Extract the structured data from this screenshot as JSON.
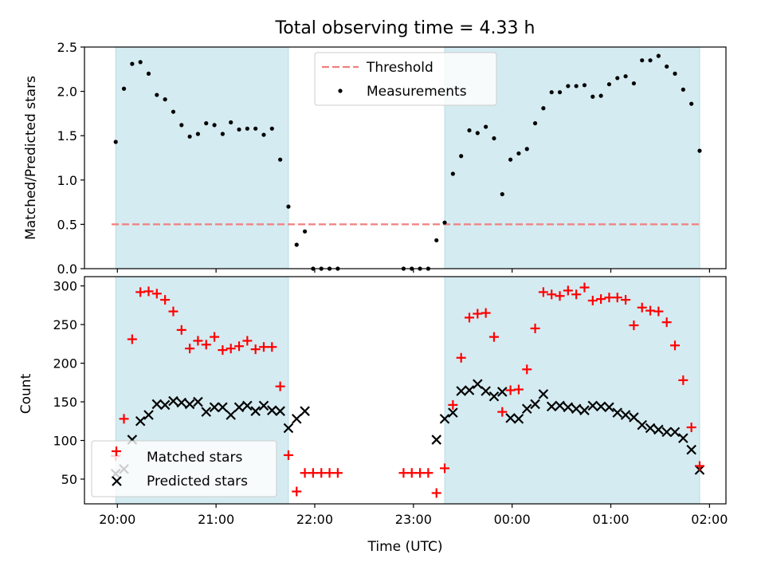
{
  "chart_data": [
    {
      "type": "scatter",
      "title": "Total observing time = 4.33 h",
      "ylabel": "Matched/Predicted stars",
      "ylim": [
        0,
        2.5
      ],
      "yticks": [
        0,
        0.5,
        1.0,
        1.5,
        2.0,
        2.5
      ],
      "ytick_labels": [
        "0.0",
        "0.5",
        "1.0",
        "1.5",
        "2.0",
        "2.5"
      ],
      "legend_placement": "upper-center",
      "threshold": {
        "name": "Threshold",
        "y": 0.5,
        "color": "#f08080",
        "style": "dashed"
      },
      "series": [
        {
          "name": "Measurements",
          "color": "#000000",
          "marker": "dot",
          "x": [
            "19:49",
            "19:54",
            "19:59",
            "20:04",
            "20:09",
            "20:14",
            "20:19",
            "20:24",
            "20:29",
            "20:34",
            "20:39",
            "20:44",
            "20:49",
            "20:54",
            "20:59",
            "21:04",
            "21:09",
            "21:14",
            "21:19",
            "21:24",
            "21:29",
            "21:34",
            "21:39",
            "21:44",
            "21:49",
            "21:54",
            "21:59",
            "22:04",
            "22:44",
            "22:49",
            "22:54",
            "22:59",
            "23:04",
            "23:09",
            "23:14",
            "23:19",
            "23:24",
            "23:29",
            "23:34",
            "23:39",
            "23:44",
            "23:49",
            "23:54",
            "23:59",
            "00:04",
            "00:09",
            "00:14",
            "00:19",
            "00:24",
            "00:29",
            "00:34",
            "00:39",
            "00:44",
            "00:49",
            "00:54",
            "00:59",
            "01:04",
            "01:09",
            "01:14",
            "01:19",
            "01:24",
            "01:29",
            "01:34",
            "01:39",
            "01:44"
          ],
          "values": [
            1.43,
            2.03,
            2.31,
            2.33,
            2.2,
            1.96,
            1.91,
            1.77,
            1.62,
            1.49,
            1.52,
            1.64,
            1.62,
            1.52,
            1.65,
            1.57,
            1.58,
            1.58,
            1.51,
            1.58,
            1.23,
            0.7,
            0.27,
            0.42,
            0.0,
            0.0,
            0.0,
            0.0,
            0.0,
            0.0,
            0.0,
            0.0,
            0.32,
            0.52,
            1.07,
            1.27,
            1.56,
            1.53,
            1.6,
            1.47,
            0.84,
            1.23,
            1.3,
            1.35,
            1.64,
            1.81,
            1.99,
            1.99,
            2.06,
            2.06,
            2.07,
            1.94,
            1.95,
            2.08,
            2.15,
            2.17,
            2.09,
            2.35,
            2.35,
            2.4,
            2.28,
            2.2,
            2.02,
            1.86,
            1.33
          ]
        }
      ],
      "shaded_intervals": [
        [
          "19:49",
          "21:34"
        ],
        [
          "23:09",
          "01:44"
        ]
      ],
      "shade_color": "#d4ebf1"
    },
    {
      "type": "scatter",
      "xlabel": "Time (UTC)",
      "ylabel": "Count",
      "ylim": [
        18,
        312
      ],
      "yticks": [
        50,
        100,
        150,
        200,
        250,
        300
      ],
      "ytick_labels": [
        "50",
        "100",
        "150",
        "200",
        "250",
        "300"
      ],
      "x_range": [
        "19:30",
        "02:00"
      ],
      "xticks": [
        "19:50",
        "20:50",
        "21:50",
        "22:50",
        "23:50",
        "00:50",
        "01:50"
      ],
      "xtick_labels": [
        "20:00",
        "21:00",
        "22:00",
        "23:00",
        "00:00",
        "01:00",
        "02:00"
      ],
      "legend_placement": "lower-left",
      "series": [
        {
          "name": "Matched stars",
          "color": "#ff0000",
          "marker": "plus",
          "x": [
            "19:49",
            "19:54",
            "19:59",
            "20:04",
            "20:09",
            "20:14",
            "20:19",
            "20:24",
            "20:29",
            "20:34",
            "20:39",
            "20:44",
            "20:49",
            "20:54",
            "20:59",
            "21:04",
            "21:09",
            "21:14",
            "21:19",
            "21:24",
            "21:29",
            "21:34",
            "21:39",
            "21:44",
            "21:49",
            "21:54",
            "21:59",
            "22:04",
            "22:44",
            "22:49",
            "22:54",
            "22:59",
            "23:04",
            "23:09",
            "23:14",
            "23:19",
            "23:24",
            "23:29",
            "23:34",
            "23:39",
            "23:44",
            "23:49",
            "23:54",
            "23:59",
            "00:04",
            "00:09",
            "00:14",
            "00:19",
            "00:24",
            "00:29",
            "00:34",
            "00:39",
            "00:44",
            "00:49",
            "00:54",
            "00:59",
            "01:04",
            "01:09",
            "01:14",
            "01:19",
            "01:24",
            "01:29",
            "01:34",
            "01:39",
            "01:44"
          ],
          "values": [
            80,
            128,
            231,
            292,
            293,
            290,
            282,
            267,
            243,
            219,
            229,
            224,
            234,
            217,
            219,
            222,
            229,
            218,
            221,
            221,
            170,
            81,
            34,
            58,
            58,
            58,
            58,
            58,
            58,
            58,
            58,
            58,
            32,
            64,
            146,
            207,
            259,
            264,
            265,
            234,
            137,
            165,
            166,
            192,
            245,
            292,
            289,
            287,
            294,
            289,
            298,
            281,
            283,
            285,
            285,
            282,
            249,
            272,
            268,
            267,
            253,
            223,
            178,
            117,
            67
          ]
        },
        {
          "name": "Predicted stars",
          "color": "#000000",
          "marker": "cross",
          "x": [
            "19:49",
            "19:54",
            "19:59",
            "20:04",
            "20:09",
            "20:14",
            "20:19",
            "20:24",
            "20:29",
            "20:34",
            "20:39",
            "20:44",
            "20:49",
            "20:54",
            "20:59",
            "21:04",
            "21:09",
            "21:14",
            "21:19",
            "21:24",
            "21:29",
            "21:34",
            "21:39",
            "21:44",
            "23:04",
            "23:09",
            "23:14",
            "23:19",
            "23:24",
            "23:29",
            "23:34",
            "23:39",
            "23:44",
            "23:49",
            "23:54",
            "23:59",
            "00:04",
            "00:09",
            "00:14",
            "00:19",
            "00:24",
            "00:29",
            "00:34",
            "00:39",
            "00:44",
            "00:49",
            "00:54",
            "00:59",
            "01:04",
            "01:09",
            "01:14",
            "01:19",
            "01:24",
            "01:29",
            "01:34",
            "01:39",
            "01:44"
          ],
          "values": [
            57,
            63,
            101,
            125,
            133,
            147,
            146,
            151,
            149,
            147,
            150,
            137,
            143,
            143,
            133,
            143,
            145,
            138,
            145,
            139,
            138,
            116,
            128,
            138,
            101,
            128,
            136,
            164,
            165,
            173,
            164,
            157,
            163,
            129,
            128,
            141,
            147,
            160,
            144,
            145,
            143,
            141,
            139,
            145,
            144,
            143,
            136,
            133,
            130,
            120,
            116,
            114,
            111,
            111,
            103,
            88,
            62
          ]
        }
      ]
    }
  ]
}
